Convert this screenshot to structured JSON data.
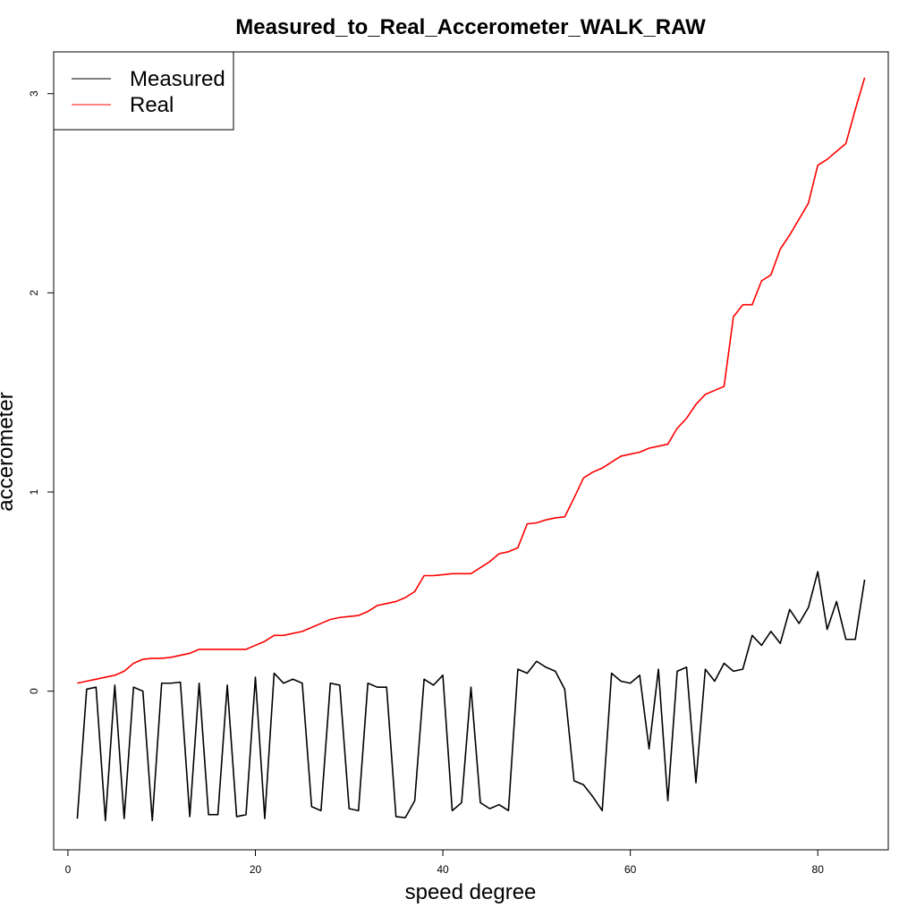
{
  "chart_data": {
    "type": "line",
    "title": "Measured_to_Real_Accerometer_WALK_RAW",
    "xlabel": "speed degree",
    "ylabel": "accerometer",
    "xlim": [
      -1.52,
      87.52
    ],
    "ylim": [
      -0.7966,
      3.2098
    ],
    "xticks": [
      0,
      20,
      40,
      60,
      80
    ],
    "yticks": [
      0,
      1,
      2,
      3
    ],
    "grid": false,
    "legend": {
      "position": "top-left",
      "entries": [
        {
          "label": "Measured",
          "color": "#000000"
        },
        {
          "label": "Real",
          "color": "#ff0000"
        }
      ]
    },
    "x": [
      1,
      2,
      3,
      4,
      5,
      6,
      7,
      8,
      9,
      10,
      11,
      12,
      13,
      14,
      15,
      16,
      17,
      18,
      19,
      20,
      21,
      22,
      23,
      24,
      25,
      26,
      27,
      28,
      29,
      30,
      31,
      32,
      33,
      34,
      35,
      36,
      37,
      38,
      39,
      40,
      41,
      42,
      43,
      44,
      45,
      46,
      47,
      48,
      49,
      50,
      51,
      52,
      53,
      54,
      55,
      56,
      57,
      58,
      59,
      60,
      61,
      62,
      63,
      64,
      65,
      66,
      67,
      68,
      69,
      70,
      71,
      72,
      73,
      74,
      75,
      76,
      77,
      78,
      79,
      80,
      81,
      82,
      83,
      84,
      85
    ],
    "series": [
      {
        "name": "Measured",
        "color": "#000000",
        "values": [
          -0.64,
          0.01,
          0.02,
          -0.65,
          0.03,
          -0.64,
          0.02,
          0.0,
          -0.65,
          0.04,
          0.04,
          0.045,
          -0.63,
          0.04,
          -0.62,
          -0.62,
          0.03,
          -0.63,
          -0.62,
          0.07,
          -0.64,
          0.09,
          0.04,
          0.06,
          0.04,
          -0.58,
          -0.6,
          0.04,
          0.03,
          -0.59,
          -0.6,
          0.04,
          0.02,
          0.02,
          -0.63,
          -0.635,
          -0.55,
          0.06,
          0.03,
          0.08,
          -0.6,
          -0.56,
          0.02,
          -0.56,
          -0.59,
          -0.57,
          -0.6,
          0.11,
          0.09,
          0.15,
          0.12,
          0.1,
          0.01,
          -0.45,
          -0.47,
          -0.53,
          -0.6,
          0.09,
          0.05,
          0.04,
          0.08,
          -0.29,
          0.11,
          -0.55,
          0.1,
          0.12,
          -0.46,
          0.11,
          0.05,
          0.14,
          0.1,
          0.11,
          0.28,
          0.23,
          0.3,
          0.24,
          0.41,
          0.34,
          0.42,
          0.6,
          0.31,
          0.45,
          0.26,
          0.26,
          0.56
        ]
      },
      {
        "name": "Real",
        "color": "#ff0000",
        "values": [
          0.04,
          0.05,
          0.06,
          0.07,
          0.08,
          0.1,
          0.14,
          0.16,
          0.165,
          0.165,
          0.17,
          0.18,
          0.19,
          0.21,
          0.21,
          0.21,
          0.21,
          0.21,
          0.21,
          0.23,
          0.25,
          0.28,
          0.28,
          0.29,
          0.3,
          0.32,
          0.34,
          0.36,
          0.37,
          0.375,
          0.38,
          0.4,
          0.43,
          0.44,
          0.45,
          0.47,
          0.5,
          0.58,
          0.58,
          0.585,
          0.59,
          0.59,
          0.59,
          0.62,
          0.65,
          0.69,
          0.7,
          0.72,
          0.84,
          0.845,
          0.86,
          0.87,
          0.875,
          0.97,
          1.07,
          1.1,
          1.12,
          1.15,
          1.18,
          1.19,
          1.2,
          1.22,
          1.23,
          1.24,
          1.32,
          1.37,
          1.44,
          1.49,
          1.51,
          1.53,
          1.88,
          1.94,
          1.94,
          2.06,
          2.09,
          2.22,
          2.29,
          2.37,
          2.45,
          2.64,
          2.67,
          2.71,
          2.75,
          2.92,
          3.08
        ]
      }
    ]
  }
}
